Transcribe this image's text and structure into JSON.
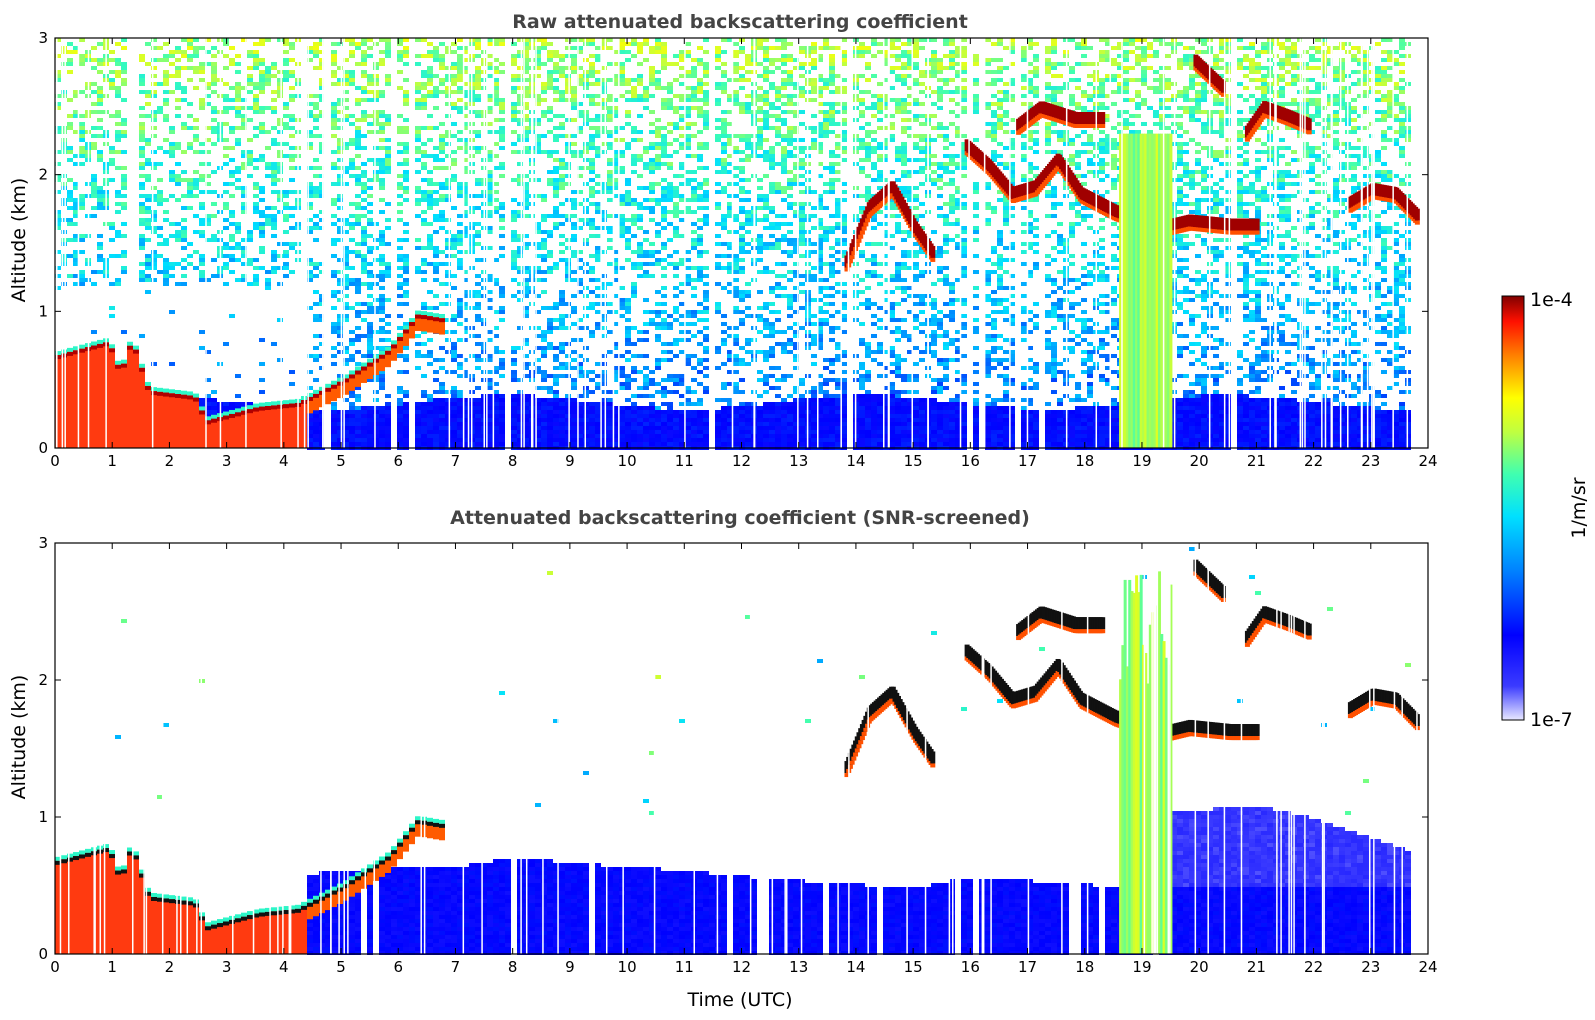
{
  "chart_data": [
    {
      "type": "heatmap",
      "title": "Raw attenuated backscattering coefficient",
      "xlabel": "",
      "ylabel": "Altitude (km)",
      "xlim": [
        0,
        24
      ],
      "ylim": [
        0,
        3
      ],
      "xticks": [
        "0",
        "1",
        "2",
        "3",
        "4",
        "5",
        "6",
        "7",
        "8",
        "9",
        "10",
        "11",
        "12",
        "13",
        "14",
        "15",
        "16",
        "17",
        "18",
        "19",
        "20",
        "21",
        "22",
        "23",
        "24"
      ],
      "yticks": [
        "0",
        "1",
        "2",
        "3"
      ],
      "screened": false,
      "layers": [
        {
          "kind": "boundary_layer",
          "points": [
            [
              0,
              0.68
            ],
            [
              0.9,
              0.78
            ],
            [
              1.1,
              0.55
            ],
            [
              1.3,
              0.8
            ],
            [
              1.6,
              0.42
            ],
            [
              2.4,
              0.38
            ],
            [
              2.6,
              0.2
            ],
            [
              3.5,
              0.3
            ],
            [
              4.2,
              0.33
            ],
            [
              5.0,
              0.5
            ],
            [
              5.8,
              0.72
            ],
            [
              6.3,
              0.98
            ],
            [
              6.7,
              0.95
            ]
          ]
        },
        {
          "kind": "cloud",
          "points": [
            [
              13.8,
              1.35
            ],
            [
              14.2,
              1.75
            ],
            [
              14.6,
              1.9
            ],
            [
              15.0,
              1.6
            ],
            [
              15.3,
              1.42
            ]
          ]
        },
        {
          "kind": "cloud",
          "points": [
            [
              15.9,
              2.2
            ],
            [
              16.3,
              2.05
            ],
            [
              16.7,
              1.85
            ],
            [
              17.1,
              1.9
            ],
            [
              17.5,
              2.1
            ],
            [
              17.9,
              1.85
            ],
            [
              18.5,
              1.72
            ],
            [
              19.3,
              1.6
            ],
            [
              19.8,
              1.65
            ],
            [
              20.5,
              1.62
            ],
            [
              21.0,
              1.62
            ]
          ]
        },
        {
          "kind": "cloud",
          "points": [
            [
              16.8,
              2.35
            ],
            [
              17.2,
              2.48
            ],
            [
              17.8,
              2.4
            ],
            [
              18.3,
              2.4
            ]
          ]
        },
        {
          "kind": "cloud",
          "points": [
            [
              19.9,
              2.82
            ],
            [
              20.2,
              2.7
            ],
            [
              20.4,
              2.62
            ]
          ]
        },
        {
          "kind": "cloud",
          "points": [
            [
              20.8,
              2.3
            ],
            [
              21.1,
              2.48
            ],
            [
              21.5,
              2.42
            ],
            [
              21.9,
              2.35
            ]
          ]
        },
        {
          "kind": "cloud",
          "points": [
            [
              22.6,
              1.78
            ],
            [
              23.0,
              1.88
            ],
            [
              23.4,
              1.85
            ],
            [
              23.8,
              1.68
            ]
          ]
        }
      ],
      "precipitation": {
        "x0": 18.6,
        "x1": 19.5
      }
    },
    {
      "type": "heatmap",
      "title": "Attenuated backscattering coefficient (SNR-screened)",
      "xlabel": "Time (UTC)",
      "ylabel": "Altitude (km)",
      "xlim": [
        0,
        24
      ],
      "ylim": [
        0,
        3
      ],
      "xticks": [
        "0",
        "1",
        "2",
        "3",
        "4",
        "5",
        "6",
        "7",
        "8",
        "9",
        "10",
        "11",
        "12",
        "13",
        "14",
        "15",
        "16",
        "17",
        "18",
        "19",
        "20",
        "21",
        "22",
        "23",
        "24"
      ],
      "yticks": [
        "0",
        "1",
        "2",
        "3"
      ],
      "screened": true,
      "aerosol_top": [
        [
          4.4,
          0.6
        ],
        [
          6.0,
          0.66
        ],
        [
          7.0,
          0.65
        ],
        [
          8.0,
          0.72
        ],
        [
          9.0,
          0.68
        ],
        [
          10.0,
          0.65
        ],
        [
          11.0,
          0.62
        ],
        [
          12.0,
          0.58
        ],
        [
          13.0,
          0.55
        ],
        [
          14.0,
          0.52
        ],
        [
          15.0,
          0.5
        ],
        [
          16.0,
          0.58
        ],
        [
          17.0,
          0.55
        ],
        [
          18.0,
          0.52
        ],
        [
          18.6,
          0.5
        ],
        [
          19.5,
          1.05
        ],
        [
          21.0,
          1.1
        ],
        [
          22.0,
          1.0
        ],
        [
          23.0,
          0.85
        ],
        [
          23.8,
          0.75
        ]
      ]
    }
  ],
  "colorbar": {
    "label": "1/m/sr",
    "max_label": "1e-4",
    "min_label": "1e-7",
    "colormap": "jet",
    "scale": "log"
  }
}
